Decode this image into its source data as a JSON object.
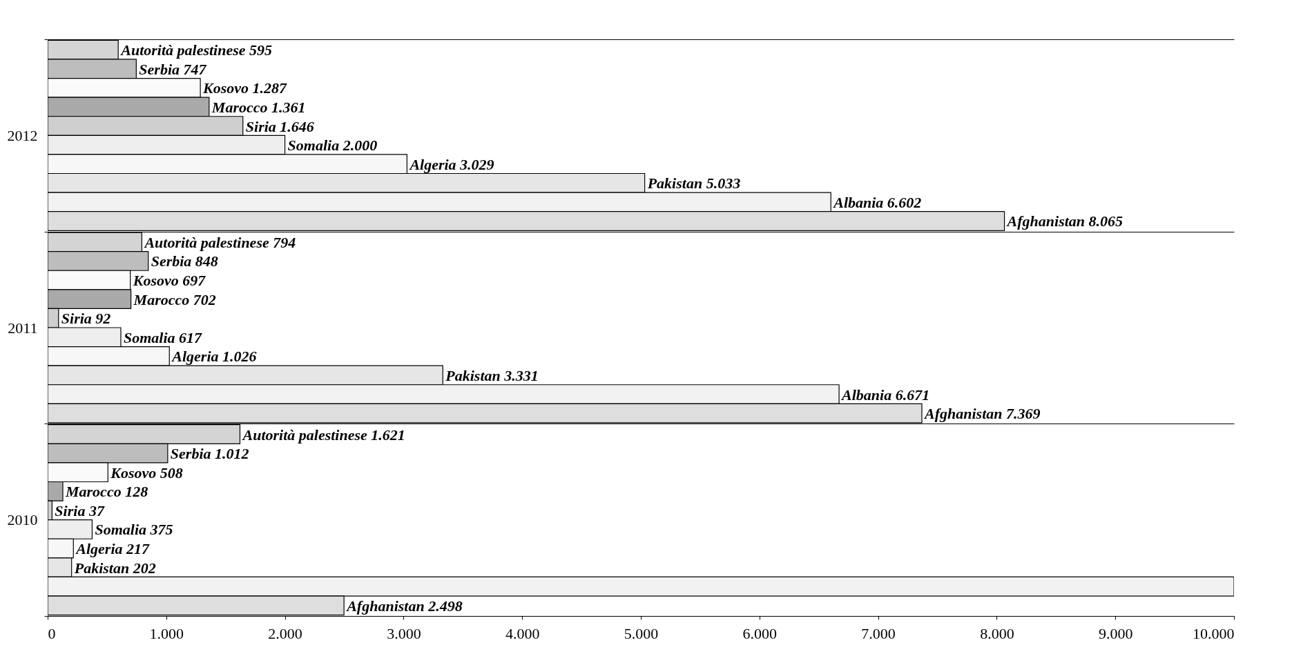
{
  "chart_data": {
    "type": "bar",
    "orientation": "horizontal",
    "categories": [
      "2012",
      "2011",
      "2010"
    ],
    "xlim": [
      0,
      10000
    ],
    "xticks": [
      0,
      {
        "value": 1000,
        "label": "1.000"
      },
      {
        "value": 2000,
        "label": "2.000"
      },
      {
        "value": 3000,
        "label": "3.000"
      },
      {
        "value": 4000,
        "label": "4.000"
      },
      {
        "value": 5000,
        "label": "5.000"
      },
      {
        "value": 6000,
        "label": "6.000"
      },
      {
        "value": 7000,
        "label": "7.000"
      },
      {
        "value": 8000,
        "label": "8.000"
      },
      {
        "value": 9000,
        "label": "9.000"
      },
      {
        "value": 10000,
        "label": "10.000"
      }
    ],
    "grid": "y",
    "legend": false,
    "series": [
      {
        "name": "Autorità palestinese",
        "color": "#d4d4d4",
        "values": [
          595,
          794,
          1621
        ],
        "value_labels": [
          "595",
          "794",
          "1.621"
        ]
      },
      {
        "name": "Serbia",
        "color": "#bdbdbd",
        "values": [
          747,
          848,
          1012
        ],
        "value_labels": [
          "747",
          "848",
          "1.012"
        ]
      },
      {
        "name": "Kosovo",
        "color": "#fafafa",
        "values": [
          1287,
          697,
          508
        ],
        "value_labels": [
          "1.287",
          "697",
          "508"
        ]
      },
      {
        "name": "Marocco",
        "color": "#a9a9a9",
        "values": [
          1361,
          702,
          128
        ],
        "value_labels": [
          "1.361",
          "702",
          "128"
        ]
      },
      {
        "name": "Siria",
        "color": "#cfcfcf",
        "values": [
          1646,
          92,
          37
        ],
        "value_labels": [
          "1.646",
          "92",
          "37"
        ]
      },
      {
        "name": "Somalia",
        "color": "#eeeeee",
        "values": [
          2000,
          617,
          375
        ],
        "value_labels": [
          "2.000",
          "617",
          "375"
        ]
      },
      {
        "name": "Algeria",
        "color": "#f7f7f7",
        "values": [
          3029,
          1026,
          217
        ],
        "value_labels": [
          "3.029",
          "1.026",
          "217"
        ]
      },
      {
        "name": "Pakistan",
        "color": "#e6e6e6",
        "values": [
          5033,
          3331,
          202
        ],
        "value_labels": [
          "5.033",
          "3.331",
          "202"
        ]
      },
      {
        "name": "Albania",
        "color": "#f2f2f2",
        "values": [
          6602,
          6671,
          10000
        ],
        "value_labels": [
          "6.602",
          "6.671",
          null
        ]
      },
      {
        "name": "Afghanistan",
        "color": "#dedede",
        "values": [
          8065,
          7369,
          2498
        ],
        "value_labels": [
          "8.065",
          "7.369",
          "2.498"
        ]
      }
    ],
    "data_labels": true
  }
}
